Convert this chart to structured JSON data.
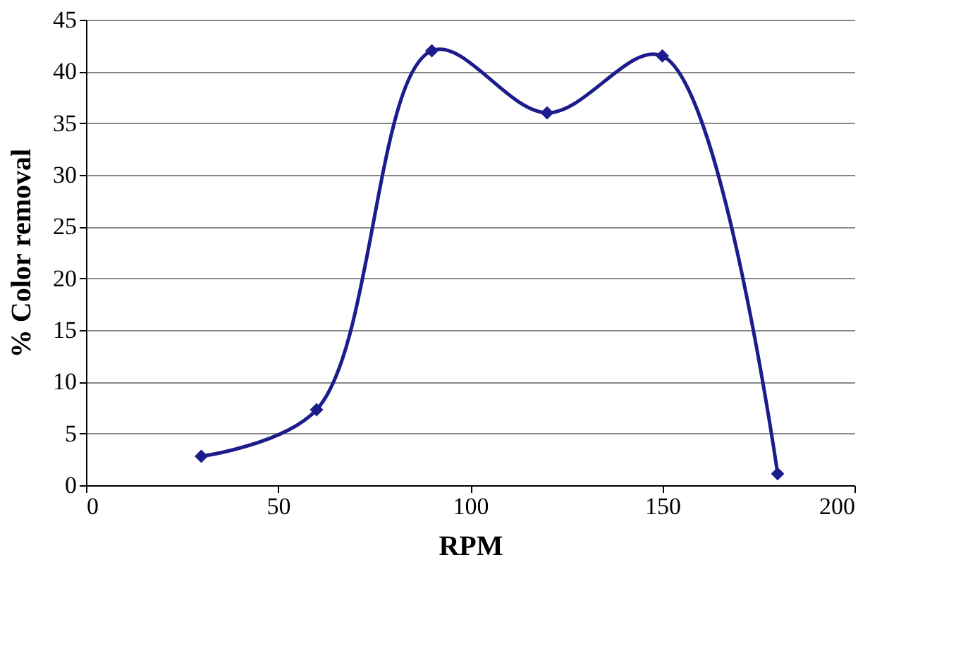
{
  "chart_data": {
    "type": "line",
    "xlabel": "RPM",
    "ylabel": "% Color removal",
    "x": [
      30,
      60,
      90,
      120,
      150,
      180
    ],
    "series": [
      {
        "color": "#1c1c8c",
        "values": [
          2.8,
          7.3,
          42,
          36,
          41.5,
          1.1
        ]
      }
    ],
    "xlim": [
      0,
      200
    ],
    "xticks": [
      0,
      50,
      100,
      150,
      200
    ],
    "ylim": [
      0,
      45
    ],
    "yticks": [
      0,
      5,
      10,
      15,
      20,
      25,
      30,
      35,
      40,
      45
    ],
    "grid": "y",
    "marker": "diamond",
    "line_style": "solid"
  }
}
